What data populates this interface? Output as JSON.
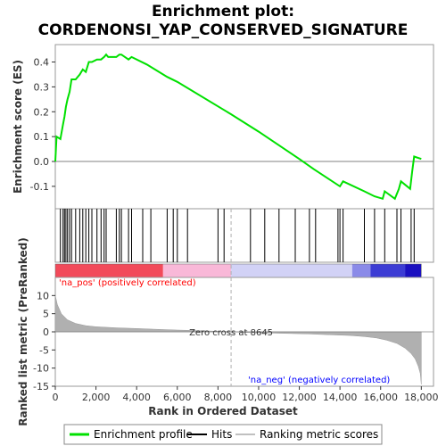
{
  "chart_data": {
    "type": "line",
    "title_line1": "Enrichment plot:",
    "title_line2": "CORDENONSI_YAP_CONSERVED_SIGNATURE",
    "xlabel": "Rank in Ordered Dataset",
    "ylabel_top": "Enrichment score (ES)",
    "ylabel_bottom": "Ranked list metric (PreRanked)",
    "xlim": [
      0,
      18600
    ],
    "es_ylim": [
      -0.19,
      0.47
    ],
    "metric_ylim": [
      -15,
      15
    ],
    "x_ticks": [
      0,
      2000,
      4000,
      6000,
      8000,
      10000,
      12000,
      14000,
      16000,
      18000
    ],
    "x_tick_labels": [
      "0",
      "2,000",
      "4,000",
      "6,000",
      "8,000",
      "10,000",
      "12,000",
      "14,000",
      "16,000",
      "18,000"
    ],
    "es_ticks": [
      -0.1,
      0.0,
      0.1,
      0.2,
      0.3,
      0.4
    ],
    "es_tick_labels": [
      "-0.1",
      "0.0",
      "0.1",
      "0.2",
      "0.3",
      "0.4"
    ],
    "metric_ticks": [
      -15,
      -10,
      -5,
      0,
      5,
      10
    ],
    "metric_tick_labels": [
      "-15",
      "-10",
      "-5",
      "0",
      "5",
      "10"
    ],
    "enrichment_profile": {
      "x": [
        0,
        60,
        250,
        380,
        450,
        520,
        600,
        700,
        800,
        1000,
        1200,
        1350,
        1500,
        1650,
        1800,
        2050,
        2250,
        2400,
        2500,
        2600,
        3000,
        3150,
        3250,
        3600,
        3750,
        4500,
        5500,
        6000,
        8645,
        10000,
        12000,
        12700,
        14000,
        14150,
        15200,
        15700,
        16100,
        16200,
        16700,
        16900,
        17000,
        17450,
        17550,
        17650,
        18000
      ],
      "y": [
        0.0,
        0.1,
        0.09,
        0.15,
        0.18,
        0.22,
        0.25,
        0.28,
        0.33,
        0.33,
        0.35,
        0.37,
        0.36,
        0.4,
        0.4,
        0.41,
        0.41,
        0.42,
        0.43,
        0.42,
        0.42,
        0.43,
        0.43,
        0.41,
        0.42,
        0.39,
        0.34,
        0.32,
        0.19,
        0.12,
        0.01,
        -0.03,
        -0.1,
        -0.08,
        -0.12,
        -0.14,
        -0.15,
        -0.12,
        -0.15,
        -0.11,
        -0.08,
        -0.11,
        -0.04,
        0.02,
        0.01
      ]
    },
    "hits_x": [
      250,
      380,
      450,
      520,
      600,
      700,
      800,
      1000,
      1200,
      1350,
      1500,
      1650,
      1800,
      2050,
      2250,
      2400,
      2500,
      3000,
      3150,
      3250,
      3600,
      3750,
      4300,
      4700,
      5500,
      5800,
      6000,
      6500,
      8000,
      8300,
      9600,
      10300,
      11000,
      11800,
      12500,
      12800,
      13900,
      14000,
      14150,
      15200,
      15700,
      16200,
      16800,
      17000,
      17500,
      17650
    ],
    "metric_profile": {
      "x": [
        0,
        100,
        300,
        600,
        1000,
        1500,
        2000,
        3000,
        4000,
        5000,
        6000,
        7000,
        8000,
        8645,
        9500,
        11000,
        12500,
        13500,
        14500,
        15200,
        15800,
        16300,
        16800,
        17200,
        17500,
        17700,
        17850,
        17950,
        18000
      ],
      "y": [
        10,
        7.5,
        5,
        3.3,
        2.3,
        1.7,
        1.4,
        1.1,
        0.9,
        0.7,
        0.5,
        0.35,
        0.15,
        0,
        -0.2,
        -0.4,
        -0.6,
        -0.8,
        -1.0,
        -1.3,
        -1.7,
        -2.3,
        -3.2,
        -4.5,
        -6,
        -7.5,
        -9.5,
        -11.5,
        -14.5
      ]
    },
    "zero_cross_x": 8645,
    "zero_cross_label": "Zero cross at 8645",
    "pos_label": "'na_pos' (positively correlated)",
    "neg_label": "'na_neg' (negatively correlated)",
    "legend": {
      "placement": "bottom",
      "items": [
        {
          "label": "Enrichment profile",
          "color": "#00e000",
          "kind": "line"
        },
        {
          "label": "Hits",
          "color": "#000000",
          "kind": "line"
        },
        {
          "label": "Ranking metric scores",
          "color": "#c0c0c0",
          "kind": "line"
        }
      ]
    },
    "colors": {
      "es_line": "#00e000",
      "hits": "#000000",
      "metric_fill": "#b0b0b0",
      "pos_text": "#ff0000",
      "neg_text": "#0000ff",
      "zero_line": "#808080"
    },
    "colorbar": [
      {
        "from": 0,
        "to": 5300,
        "color": "#f24a5a"
      },
      {
        "from": 5300,
        "to": 8645,
        "color": "#f9b8d8"
      },
      {
        "from": 8645,
        "to": 14600,
        "color": "#d2d2f6"
      },
      {
        "from": 14600,
        "to": 15500,
        "color": "#8a8ae8"
      },
      {
        "from": 15500,
        "to": 17200,
        "color": "#3c3cd4"
      },
      {
        "from": 17200,
        "to": 18000,
        "color": "#1a10c0"
      }
    ]
  }
}
